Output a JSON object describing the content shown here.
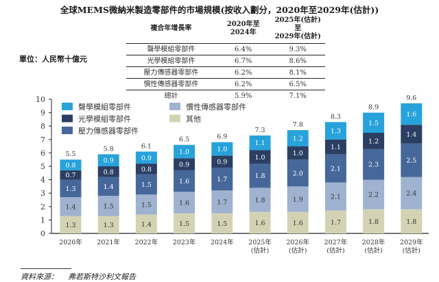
{
  "title": "全球MEMS微納米製造零部件的市場規模(按收入劃分，2020年至2029年(估計))",
  "unit_label": "單位：人民幣十億元",
  "cagr_table": {
    "header": {
      "label": "複合年增長率",
      "col1_line1": "2020年至",
      "col1_line2": "2024年",
      "col2_line1": "2025年(估計)至",
      "col2_line2": "2029年(估計)"
    },
    "rows": [
      {
        "name": "聲學模組零部件",
        "c1": "6.4%",
        "c2": "9.3%"
      },
      {
        "name": "光學模組零部件",
        "c1": "6.7%",
        "c2": "8.6%"
      },
      {
        "name": "壓力傳感器零部件",
        "c1": "6.2%",
        "c2": "8.1%"
      },
      {
        "name": "慣性傳感器零部件",
        "c1": "6.2%",
        "c2": "6.5%"
      },
      {
        "name": "總計",
        "c1": "5.9%",
        "c2": "7.1%"
      }
    ]
  },
  "chart_data": {
    "type": "bar",
    "stacked": true,
    "title": "全球MEMS微納米製造零部件的市場規模(按收入劃分，2020年至2029年(估計))",
    "xlabel": "",
    "ylabel": "人民幣十億元",
    "ylim": [
      0,
      10
    ],
    "yticks": [
      0,
      1,
      2,
      3,
      4,
      5,
      6,
      7,
      8,
      9,
      10
    ],
    "grid": false,
    "legend_position": "top-left",
    "categories": [
      [
        "2020年"
      ],
      [
        "2021年"
      ],
      [
        "2022年"
      ],
      [
        "2023年"
      ],
      [
        "2024年"
      ],
      [
        "2025年",
        "(估計)"
      ],
      [
        "2026年",
        "(估計)"
      ],
      [
        "2027年",
        "(估計)"
      ],
      [
        "2028年",
        "(估計)"
      ],
      [
        "2029年",
        "(估計)"
      ]
    ],
    "series": [
      {
        "name": "其他",
        "color": "#d3d3b4",
        "label_color": "#333333",
        "values": [
          1.3,
          1.3,
          1.4,
          1.5,
          1.5,
          1.6,
          1.6,
          1.7,
          1.8,
          1.8
        ]
      },
      {
        "name": "慣性傳感器零部件",
        "color": "#9fb2cf",
        "label_color": "#333333",
        "values": [
          1.4,
          1.5,
          1.5,
          1.6,
          1.7,
          1.8,
          1.9,
          2.1,
          2.2,
          2.4
        ]
      },
      {
        "name": "壓力傳感器零部件",
        "color": "#46679a",
        "label_color": "#ffffff",
        "values": [
          1.3,
          1.4,
          1.5,
          1.6,
          1.7,
          1.8,
          2.0,
          2.1,
          2.3,
          2.5
        ]
      },
      {
        "name": "光學模組零部件",
        "color": "#2b3f63",
        "label_color": "#ffffff",
        "values": [
          0.7,
          0.8,
          0.8,
          0.9,
          0.9,
          1.0,
          1.0,
          1.1,
          1.2,
          1.4
        ]
      },
      {
        "name": "聲學模組零部件",
        "color": "#27a2db",
        "label_color": "#ffffff",
        "values": [
          0.8,
          0.9,
          0.9,
          1.0,
          1.0,
          1.1,
          1.2,
          1.3,
          1.5,
          1.6
        ]
      }
    ],
    "totals": [
      5.5,
      5.8,
      6.1,
      6.5,
      6.9,
      7.3,
      7.8,
      8.3,
      8.9,
      9.6
    ],
    "legend_order": [
      [
        "聲學模組零部件",
        "慣性傳感器零部件"
      ],
      [
        "光學模組零部件",
        "其他"
      ],
      [
        "壓力傳感器零部件"
      ]
    ]
  },
  "source": {
    "label": "資料來源：",
    "value": "弗若斯特沙利文報告"
  }
}
